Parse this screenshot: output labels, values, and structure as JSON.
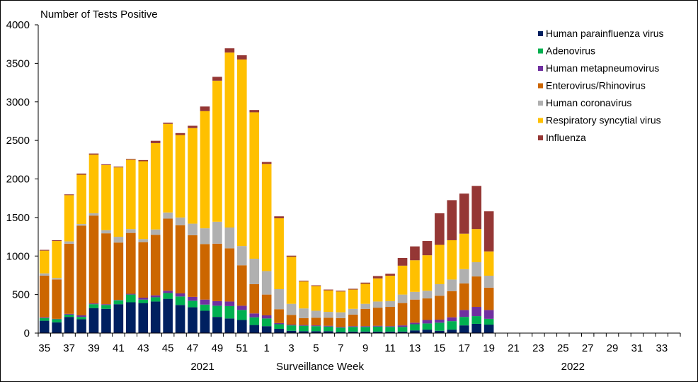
{
  "chart_data": {
    "type": "bar",
    "stacked": true,
    "title": "",
    "ylabel": "Number of Tests Positive",
    "xlabel": "Surveillance Week",
    "year_labels": [
      {
        "label": "2021",
        "at_week_index": 12
      },
      {
        "label": "2022",
        "at_week_index": 42
      }
    ],
    "ylim": [
      0,
      4000
    ],
    "yticks": [
      0,
      500,
      1000,
      1500,
      2000,
      2500,
      3000,
      3500,
      4000
    ],
    "grid": false,
    "legend_position": "top-right",
    "axis_weeks": [
      35,
      36,
      37,
      38,
      39,
      40,
      41,
      42,
      43,
      44,
      45,
      46,
      47,
      48,
      49,
      50,
      51,
      52,
      1,
      2,
      3,
      4,
      5,
      6,
      7,
      8,
      9,
      10,
      11,
      12,
      13,
      14,
      15,
      16,
      17,
      18,
      19,
      20,
      21,
      22,
      23,
      24,
      25,
      26,
      27,
      28,
      29,
      30,
      31,
      32,
      33,
      34
    ],
    "tick_labels": [
      "35",
      "37",
      "39",
      "41",
      "43",
      "45",
      "47",
      "49",
      "51",
      "1",
      "3",
      "5",
      "7",
      "9",
      "11",
      "13",
      "15",
      "17",
      "19",
      "21",
      "23",
      "25",
      "27",
      "29",
      "31",
      "33"
    ],
    "categories": [
      "35",
      "36",
      "37",
      "38",
      "39",
      "40",
      "41",
      "42",
      "43",
      "44",
      "45",
      "46",
      "47",
      "48",
      "49",
      "50",
      "51",
      "52",
      "1",
      "2",
      "3",
      "4",
      "5",
      "6",
      "7",
      "8",
      "9",
      "10",
      "11",
      "12",
      "13",
      "14",
      "15",
      "16",
      "17",
      "18",
      "19"
    ],
    "series": [
      {
        "name": "Human parainfluenza virus",
        "color": "#002060",
        "values": [
          160,
          140,
          210,
          180,
          325,
          315,
          375,
          400,
          390,
          410,
          445,
          365,
          335,
          290,
          210,
          190,
          170,
          105,
          90,
          55,
          30,
          25,
          25,
          25,
          15,
          20,
          20,
          20,
          20,
          20,
          35,
          45,
          30,
          45,
          100,
          120,
          110
        ]
      },
      {
        "name": "Adenovirus",
        "color": "#00B050",
        "values": [
          35,
          40,
          30,
          30,
          50,
          50,
          50,
          100,
          45,
          55,
          75,
          110,
          85,
          80,
          145,
          160,
          130,
          100,
          100,
          60,
          70,
          70,
          65,
          60,
          55,
          60,
          60,
          65,
          60,
          60,
          80,
          80,
          105,
          110,
          110,
          100,
          75
        ]
      },
      {
        "name": "Human metapneumovirus",
        "color": "#7030A0",
        "values": [
          10,
          5,
          10,
          20,
          10,
          10,
          5,
          10,
          25,
          25,
          30,
          40,
          50,
          65,
          60,
          60,
          55,
          50,
          40,
          15,
          10,
          10,
          10,
          10,
          10,
          10,
          10,
          10,
          10,
          20,
          20,
          45,
          40,
          50,
          90,
          120,
          115
        ]
      },
      {
        "name": "Enterovirus/Rhinovirus",
        "color": "#CC6600",
        "values": [
          540,
          510,
          910,
          1165,
          1140,
          920,
          745,
          790,
          720,
          785,
          935,
          885,
          800,
          720,
          745,
          690,
          525,
          380,
          270,
          180,
          125,
          90,
          100,
          105,
          115,
          150,
          225,
          235,
          250,
          290,
          300,
          280,
          310,
          340,
          345,
          395,
          290
        ]
      },
      {
        "name": "Human coronavirus",
        "color": "#B0B0B0",
        "values": [
          30,
          20,
          30,
          20,
          30,
          40,
          75,
          50,
          40,
          70,
          80,
          100,
          150,
          205,
          285,
          270,
          250,
          330,
          305,
          260,
          145,
          125,
          90,
          75,
          75,
          75,
          65,
          80,
          75,
          110,
          100,
          100,
          150,
          150,
          185,
          185,
          155
        ]
      },
      {
        "name": "Respiratory syncytial virus",
        "color": "#FFC000",
        "values": [
          295,
          480,
          600,
          640,
          760,
          845,
          900,
          900,
          1010,
          1120,
          1150,
          1070,
          1240,
          1520,
          1830,
          2270,
          2420,
          1900,
          1390,
          920,
          610,
          350,
          320,
          280,
          270,
          250,
          260,
          300,
          330,
          375,
          410,
          460,
          510,
          510,
          460,
          430,
          315
        ]
      },
      {
        "name": "Influenza",
        "color": "#953735",
        "values": [
          10,
          10,
          10,
          15,
          15,
          10,
          10,
          10,
          15,
          30,
          15,
          25,
          30,
          60,
          50,
          55,
          55,
          30,
          25,
          25,
          15,
          10,
          10,
          10,
          10,
          10,
          15,
          30,
          25,
          100,
          180,
          185,
          410,
          520,
          520,
          560,
          520
        ]
      }
    ]
  }
}
